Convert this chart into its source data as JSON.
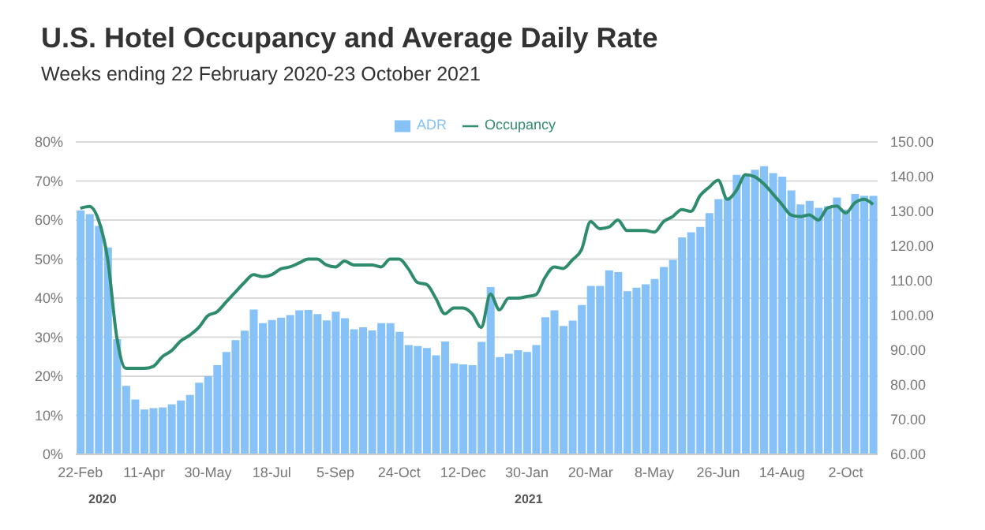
{
  "chart_data": {
    "type": "bar",
    "title": "U.S. Hotel Occupancy and Average Daily Rate",
    "subtitle": "Weeks ending 22 February 2020-23 October 2021",
    "categories": [
      "22-Feb",
      null,
      null,
      null,
      null,
      null,
      null,
      "11-Apr",
      null,
      null,
      null,
      null,
      null,
      null,
      "30-May",
      null,
      null,
      null,
      null,
      null,
      null,
      "18-Jul",
      null,
      null,
      null,
      null,
      null,
      null,
      "5-Sep",
      null,
      null,
      null,
      null,
      null,
      null,
      "24-Oct",
      null,
      null,
      null,
      null,
      null,
      null,
      "12-Dec",
      null,
      null,
      null,
      null,
      null,
      null,
      "30-Jan",
      null,
      null,
      null,
      null,
      null,
      null,
      "20-Mar",
      null,
      null,
      null,
      null,
      null,
      null,
      "8-May",
      null,
      null,
      null,
      null,
      null,
      null,
      "26-Jun",
      null,
      null,
      null,
      null,
      null,
      null,
      "14-Aug",
      null,
      null,
      null,
      null,
      null,
      null,
      "2-Oct",
      null,
      null,
      null
    ],
    "series": [
      {
        "name": "ADR",
        "axis": "y2",
        "color": "#86c2f7",
        "values": [
          130.3,
          129.2,
          125.8,
          119.6,
          93.2,
          79.7,
          75.8,
          72.9,
          73.3,
          73.5,
          74.4,
          75.5,
          77.1,
          80.6,
          82.5,
          85.7,
          89.5,
          92.9,
          95.6,
          101.7,
          97.8,
          98.7,
          99.4,
          100.1,
          101.5,
          101.6,
          100.4,
          98.6,
          101.1,
          99.2,
          96,
          96.6,
          95.7,
          97.8,
          97.8,
          95.3,
          91.5,
          91.2,
          90.6,
          88.5,
          92.5,
          86.2,
          85.9,
          85.7,
          92.4,
          108.2,
          88,
          89,
          90,
          89.5,
          91.5,
          99.5,
          101.5,
          97,
          98.5,
          103,
          108.5,
          108.5,
          113,
          112.5,
          107,
          108,
          109,
          110.5,
          114,
          116,
          122.5,
          124,
          125.5,
          129.5,
          133.5,
          134,
          140.5,
          140.5,
          142,
          143,
          141,
          140,
          136,
          132,
          133,
          131,
          131.5,
          134,
          130.5,
          135,
          134.5,
          134.5
        ]
      },
      {
        "name": "Occupancy",
        "type": "line",
        "color": "#2e8b6e",
        "values": [
          63,
          63.5,
          60,
          50,
          30,
          22,
          22,
          22,
          22.5,
          25,
          26.5,
          29,
          30.5,
          32.5,
          35.5,
          36.5,
          39,
          41.5,
          44,
          46,
          45.5,
          46,
          47.5,
          48,
          49,
          50,
          50,
          48.5,
          48,
          49.5,
          48.5,
          48.5,
          48.5,
          48,
          50,
          50,
          47.5,
          44,
          43.5,
          40,
          36,
          37.5,
          37.5,
          36,
          32.5,
          41,
          37,
          40,
          40,
          40.4,
          40.9,
          45.3,
          48,
          47.6,
          49.8,
          52.4,
          59.6,
          57.8,
          58.2,
          60,
          57.3,
          57.3,
          57.3,
          56.9,
          59.6,
          60.9,
          62.7,
          62.2,
          66.2,
          68.4,
          70.2,
          65.3,
          67.6,
          71.6,
          71.1,
          69.3,
          66.7,
          64,
          61.3,
          60.9,
          61.3,
          60,
          63.1,
          63.6,
          61.8,
          64.4,
          65.3,
          64
        ]
      }
    ],
    "ylim": [
      0,
      80
    ],
    "yticks": [
      {
        "value": 0,
        "label": "0%"
      },
      {
        "value": 10,
        "label": "10%"
      },
      {
        "value": 20,
        "label": "20%"
      },
      {
        "value": 30,
        "label": "30%"
      },
      {
        "value": 40,
        "label": "40%"
      },
      {
        "value": 50,
        "label": "50%"
      },
      {
        "value": 60,
        "label": "60%"
      },
      {
        "value": 70,
        "label": "70%"
      },
      {
        "value": 80,
        "label": "80%"
      }
    ],
    "y2lim": [
      60,
      150
    ],
    "y2ticks": [
      {
        "value": 60,
        "label": "60.00"
      },
      {
        "value": 70,
        "label": "70.00"
      },
      {
        "value": 80,
        "label": "80.00"
      },
      {
        "value": 90,
        "label": "90.00"
      },
      {
        "value": 100,
        "label": "100.00"
      },
      {
        "value": 110,
        "label": "110.00"
      },
      {
        "value": 120,
        "label": "120.00"
      },
      {
        "value": 130,
        "label": "130.00"
      },
      {
        "value": 140,
        "label": "140.00"
      },
      {
        "value": 150,
        "label": "150.00"
      }
    ],
    "grid": "y",
    "legend": "top",
    "line_style": "solid",
    "marker": "none",
    "annotations": [
      "2020",
      "2021"
    ]
  }
}
